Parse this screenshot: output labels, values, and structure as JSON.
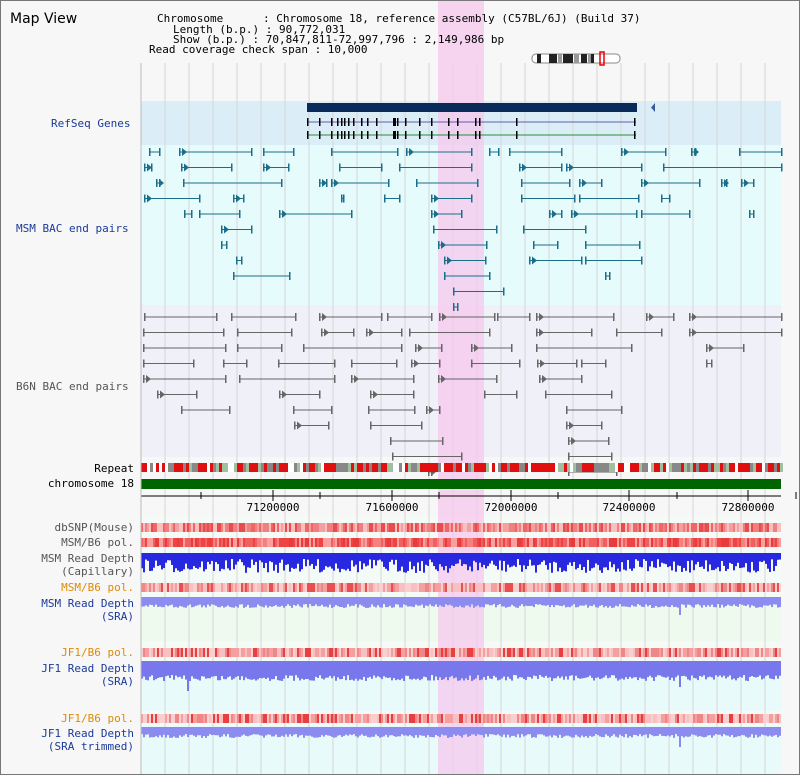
{
  "title": "Map View",
  "info": {
    "chromosome": "Chromosome      : Chromosome 18, reference assembly (C57BL/6J) (Build 37)",
    "length": "Length (b.p.) : 90,772,031",
    "show": "Show (b.p.) : 70,847,811-72,997,796 : 2,149,986 bp",
    "span": "Read coverage check span : 10,000"
  },
  "tracks": {
    "refseq": "RefSeq Genes",
    "msm_bac": "MSM BAC end pairs",
    "b6n_bac": "B6N BAC end pairs"
  },
  "labels": {
    "repeat": "Repeat",
    "chromosome": "chromosome 18",
    "dbsnp": "dbSNP(Mouse)",
    "msm_b6_pol_1": "MSM/B6 pol.",
    "msm_read_depth_cap_1": "MSM Read Depth",
    "msm_read_depth_cap_2": "(Capillary)",
    "msm_b6_pol_2": "MSM/B6 pol.",
    "msm_read_depth_sra_1": "MSM Read Depth",
    "msm_read_depth_sra_2": "(SRA)",
    "jf1_b6_pol_1": "JF1/B6 pol.",
    "jf1_read_depth_sra_1": "JF1 Read Depth",
    "jf1_read_depth_sra_2": "(SRA)",
    "jf1_b6_pol_2": "JF1/B6 pol.",
    "jf1_read_depth_trim_1": "JF1 Read Depth",
    "jf1_read_depth_trim_2": "(SRA trimmed)"
  },
  "axis": {
    "ticks": [
      "71200000",
      "71600000",
      "72000000",
      "72400000",
      "72800000"
    ]
  },
  "colors": {
    "refseq_bg": "#dbeef8",
    "bac_bg": "#e6fbfb",
    "highlight": "#f5c8ee",
    "msm_bac": "#1a6e8a",
    "b6n_bac": "#666666",
    "chromosome_bar": "#006400",
    "label_blue": "#1a3a9a",
    "label_orange": "#e08a00",
    "gene_dark": "#0a2a5a"
  }
}
